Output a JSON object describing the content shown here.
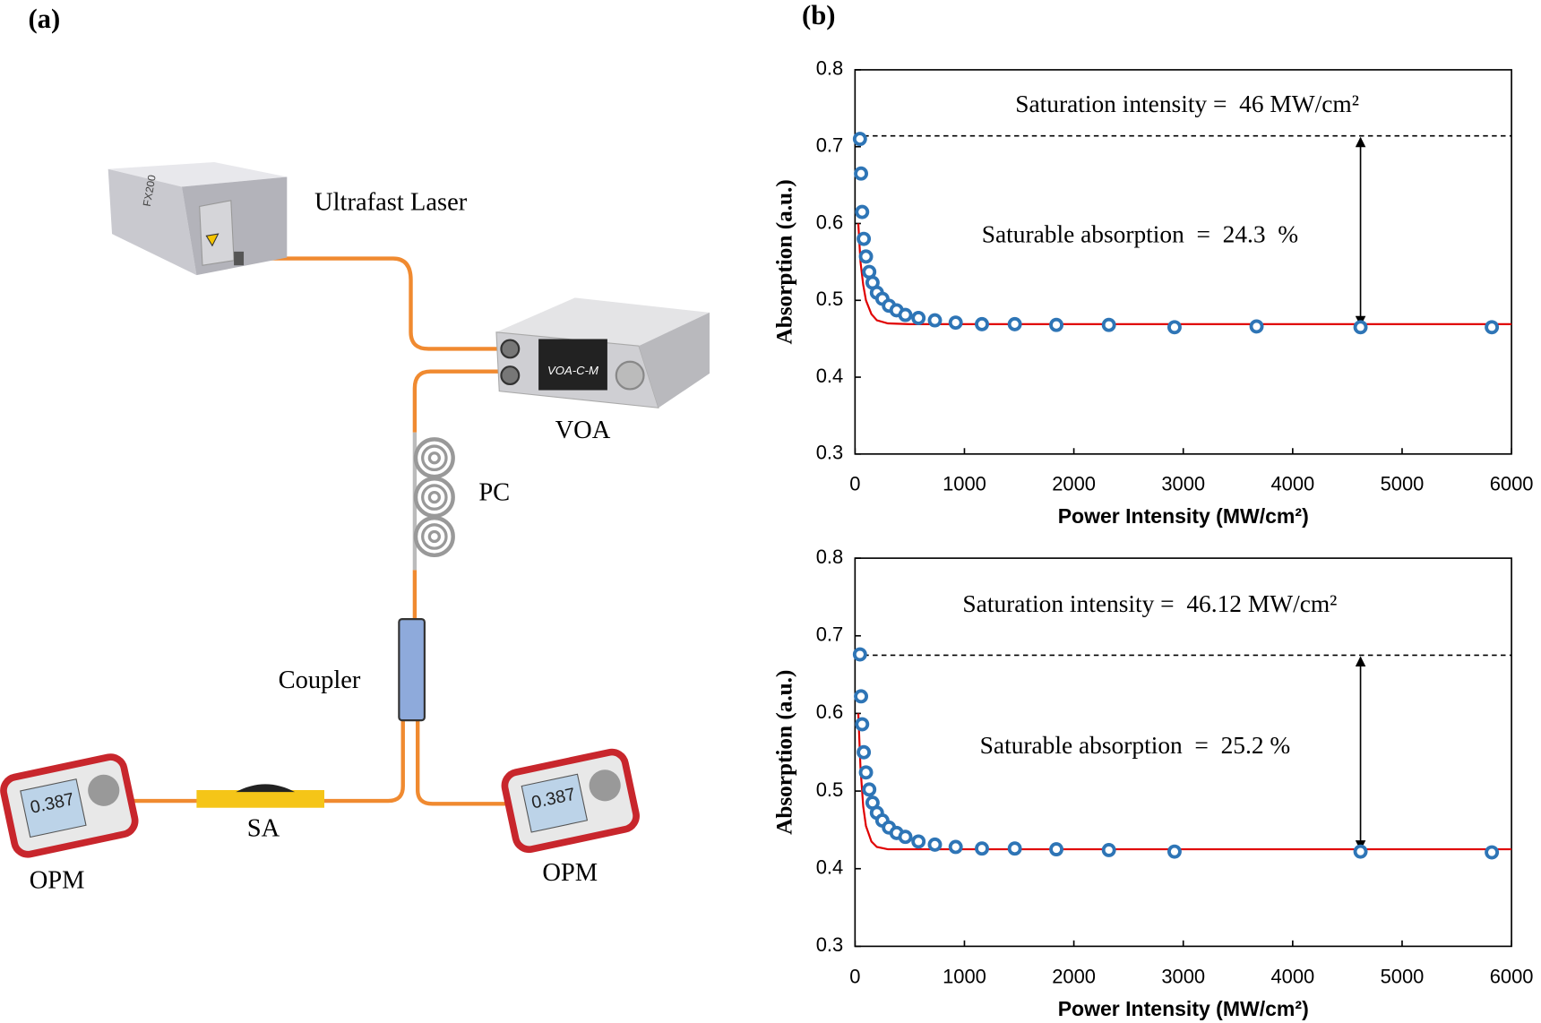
{
  "diagram": {
    "label": "(a)",
    "components": {
      "laser": "Ultrafast Laser",
      "voa": "VOA",
      "pc": "PC",
      "coupler": "Coupler",
      "sa": "SA",
      "opm_left": "OPM",
      "opm_right": "OPM"
    },
    "voa_model": "VOA-C-M",
    "laser_model": "FX200",
    "opm_display": "0.387"
  },
  "chart_panel_label": "(b)",
  "chart_data": [
    {
      "type": "scatter",
      "xlabel": "Power Intensity (MW/cm²)",
      "ylabel": "Absorption (a.u.)",
      "xlim": [
        0,
        6000
      ],
      "xticks": [
        0,
        1000,
        2000,
        3000,
        4000,
        5000,
        6000
      ],
      "ylim": [
        0.3,
        0.8
      ],
      "yticks": [
        0.3,
        0.4,
        0.5,
        0.6,
        0.7,
        0.8
      ],
      "annotations": [
        "Saturation intensity =  46 MW/cm²",
        "Saturable absorption  =  24.3  %"
      ],
      "reference_line": {
        "y": 0.714,
        "style": "dashed"
      },
      "arrow": {
        "x": 4620,
        "y": [
          0.714,
          0.465
        ]
      },
      "series": [
        {
          "color": "#2e75b6",
          "marker": "circle",
          "x": [
            45,
            55,
            65,
            80,
            100,
            130,
            160,
            200,
            250,
            310,
            380,
            460,
            580,
            730,
            920,
            1160,
            1460,
            1840,
            2320,
            2920,
            3670,
            4620,
            5820
          ],
          "values": [
            0.71,
            0.665,
            0.615,
            0.58,
            0.557,
            0.537,
            0.523,
            0.51,
            0.502,
            0.493,
            0.487,
            0.481,
            0.477,
            0.474,
            0.471,
            0.469,
            0.469,
            0.468,
            0.468,
            0.465,
            0.466,
            0.465,
            0.465
          ]
        },
        {
          "color": "#e00000",
          "marker": "line",
          "x": [
            30,
            50,
            75,
            100,
            150,
            200,
            300,
            500,
            1000,
            6000
          ],
          "values": [
            0.6,
            0.55,
            0.52,
            0.5,
            0.482,
            0.474,
            0.47,
            0.469,
            0.469,
            0.469
          ]
        }
      ]
    },
    {
      "type": "scatter",
      "xlabel": "Power Intensity (MW/cm²)",
      "ylabel": "Absorption (a.u.)",
      "xlim": [
        0,
        6000
      ],
      "xticks": [
        0,
        1000,
        2000,
        3000,
        4000,
        5000,
        6000
      ],
      "ylim": [
        0.3,
        0.8
      ],
      "yticks": [
        0.3,
        0.4,
        0.5,
        0.6,
        0.7,
        0.8
      ],
      "annotations": [
        "Saturation intensity =  46.12 MW/cm²",
        "Saturable absorption  =  25.2 %"
      ],
      "reference_line": {
        "y": 0.675,
        "style": "dashed"
      },
      "arrow": {
        "x": 4620,
        "y": [
          0.675,
          0.422
        ]
      },
      "series": [
        {
          "color": "#2e75b6",
          "marker": "circle",
          "x": [
            45,
            55,
            65,
            80,
            100,
            130,
            160,
            200,
            250,
            310,
            380,
            460,
            580,
            730,
            920,
            1160,
            1460,
            1840,
            2320,
            2920,
            4620,
            5820
          ],
          "values": [
            0.676,
            0.622,
            0.586,
            0.55,
            0.524,
            0.502,
            0.485,
            0.472,
            0.462,
            0.453,
            0.446,
            0.441,
            0.435,
            0.431,
            0.428,
            0.426,
            0.426,
            0.425,
            0.424,
            0.422,
            0.422,
            0.421
          ]
        },
        {
          "color": "#e00000",
          "marker": "line",
          "x": [
            30,
            50,
            75,
            100,
            150,
            200,
            300,
            500,
            1000,
            6000
          ],
          "values": [
            0.6,
            0.53,
            0.48,
            0.455,
            0.435,
            0.428,
            0.425,
            0.425,
            0.425,
            0.425
          ]
        }
      ]
    }
  ]
}
